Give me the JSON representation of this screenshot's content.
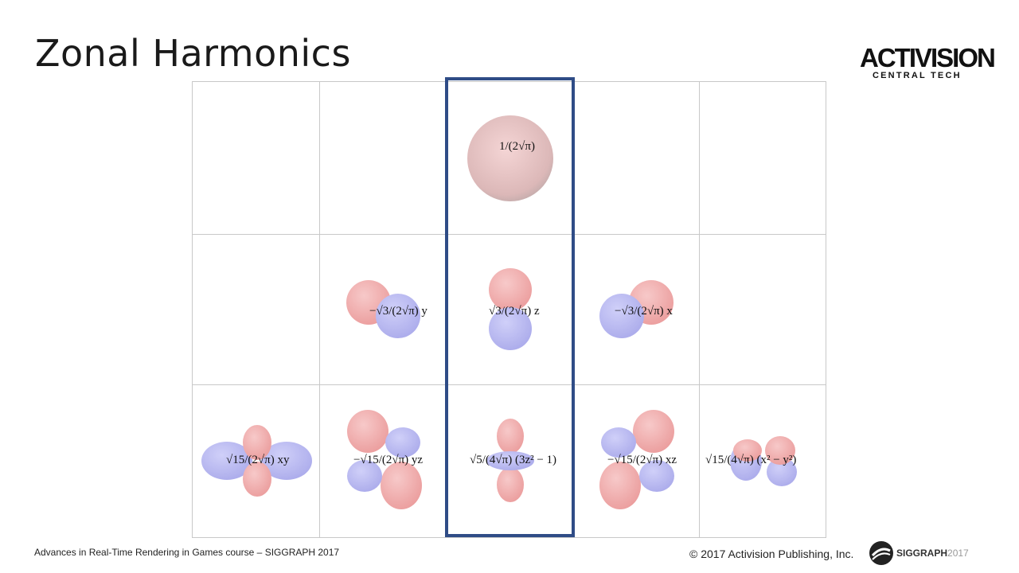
{
  "slide": {
    "title": "Zonal Harmonics",
    "logo": {
      "main": "ACTIVISION",
      "sub": "CENTRAL TECH"
    },
    "footer_left": "Advances in Real-Time Rendering in Games course – SIGGRAPH 2017",
    "footer_right": "© 2017 Activision Publishing, Inc.",
    "siggraph": {
      "name": "SIGGRAPH",
      "year": "2017"
    }
  },
  "formulas": {
    "l0": "1/(2√π)",
    "l1_m-1": "−√3/(2√π) y",
    "l1_m0": "√3/(2√π) z",
    "l1_m1": "−√3/(2√π) x",
    "l2_m-2": "√15/(2√π) xy",
    "l2_m-1": "−√15/(2√π) yz",
    "l2_m0": "√5/(4√π) (3z² − 1)",
    "l2_m1": "−√15/(2√π) xz",
    "l2_m2": "√15/(4√π) (x² − y²)"
  },
  "colors": {
    "positive": "#f2a0a0",
    "negative": "#a9a9f0",
    "highlight": "#2f4c86"
  }
}
